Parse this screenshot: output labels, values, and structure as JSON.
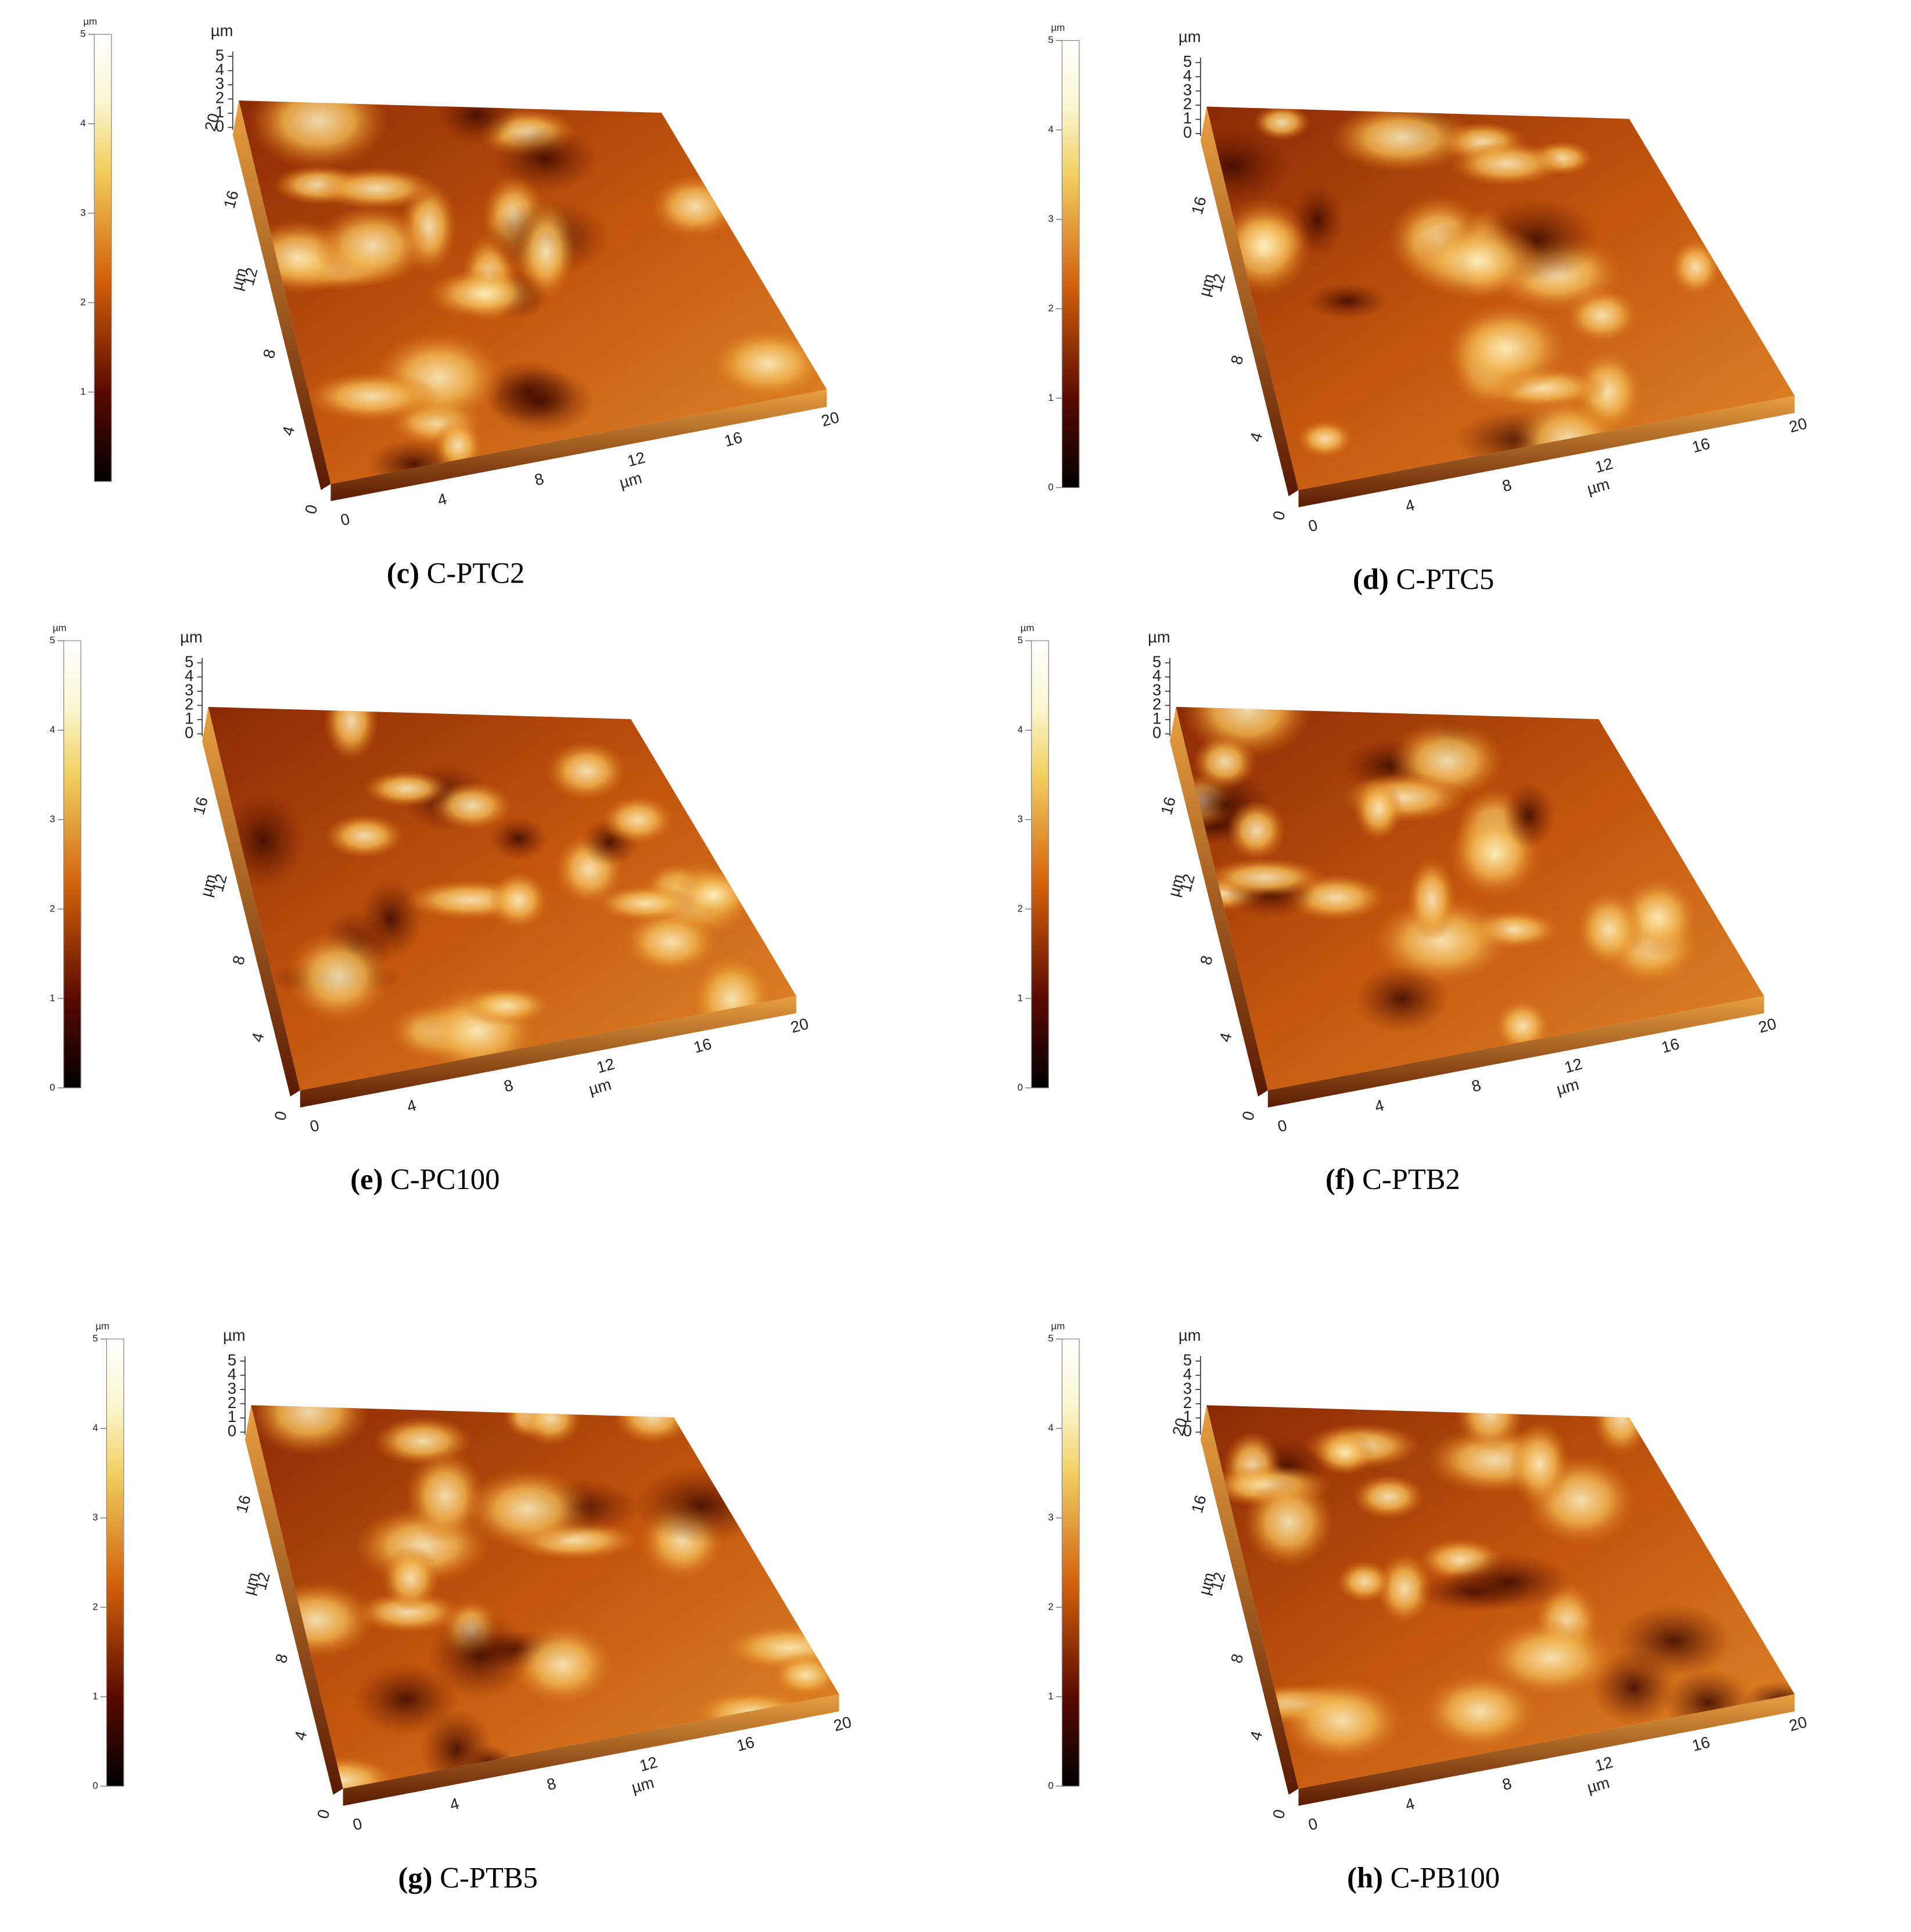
{
  "panels": [
    {
      "label": "(c)",
      "name": "C-PTC2",
      "colorbar": {
        "unit": "µm",
        "ticks": [
          1,
          2,
          3,
          4,
          5
        ]
      },
      "z": {
        "unit": "µm",
        "ticks": [
          0,
          1,
          2,
          3,
          4,
          5
        ]
      },
      "y": {
        "unit": "µm",
        "ticks": [
          4,
          8,
          12,
          16,
          20
        ]
      },
      "x": {
        "unit": "µm",
        "ticks": [
          0,
          4,
          8,
          12,
          16,
          20
        ]
      },
      "origin": 0
    },
    {
      "label": "(d)",
      "name": "C-PTC5",
      "colorbar": {
        "unit": "µm",
        "ticks": [
          0,
          1,
          2,
          3,
          4,
          5
        ]
      },
      "z": {
        "unit": "µm",
        "ticks": [
          0,
          1,
          2,
          3,
          4,
          5
        ]
      },
      "y": {
        "unit": "µm",
        "ticks": [
          4,
          8,
          12,
          16
        ]
      },
      "x": {
        "unit": "µm",
        "ticks": [
          0,
          4,
          8,
          12,
          16,
          20
        ]
      },
      "origin": 0
    },
    {
      "label": "(e)",
      "name": "C-PC100",
      "colorbar": {
        "unit": "µm",
        "ticks": [
          0,
          1,
          2,
          3,
          4,
          5
        ]
      },
      "z": {
        "unit": "µm",
        "ticks": [
          0,
          1,
          2,
          3,
          4,
          5
        ]
      },
      "y": {
        "unit": "µm",
        "ticks": [
          4,
          8,
          12,
          16
        ]
      },
      "x": {
        "unit": "µm",
        "ticks": [
          0,
          4,
          8,
          12,
          16,
          20
        ]
      },
      "origin": 0
    },
    {
      "label": "(f)",
      "name": "C-PTB2",
      "colorbar": {
        "unit": "µm",
        "ticks": [
          0,
          1,
          2,
          3,
          4,
          5
        ]
      },
      "z": {
        "unit": "µm",
        "ticks": [
          0,
          1,
          2,
          3,
          4,
          5
        ]
      },
      "y": {
        "unit": "µm",
        "ticks": [
          4,
          8,
          12,
          16
        ]
      },
      "x": {
        "unit": "µm",
        "ticks": [
          0,
          4,
          8,
          12,
          16,
          20
        ]
      },
      "origin": 0
    },
    {
      "label": "(g)",
      "name": "C-PTB5",
      "colorbar": {
        "unit": "µm",
        "ticks": [
          0,
          1,
          2,
          3,
          4,
          5
        ]
      },
      "z": {
        "unit": "µm",
        "ticks": [
          0,
          1,
          2,
          3,
          4,
          5
        ]
      },
      "y": {
        "unit": "µm",
        "ticks": [
          4,
          8,
          12,
          16
        ]
      },
      "x": {
        "unit": "µm",
        "ticks": [
          0,
          4,
          8,
          12,
          16,
          20
        ]
      },
      "origin": 0
    },
    {
      "label": "(h)",
      "name": "C-PB100",
      "colorbar": {
        "unit": "µm",
        "ticks": [
          0,
          1,
          2,
          3,
          4,
          5
        ]
      },
      "z": {
        "unit": "µm",
        "ticks": [
          0,
          1,
          2,
          3,
          4,
          5
        ]
      },
      "y": {
        "unit": "µm",
        "ticks": [
          4,
          8,
          12,
          16,
          20
        ]
      },
      "x": {
        "unit": "µm",
        "ticks": [
          0,
          4,
          8,
          12,
          16,
          20
        ]
      },
      "origin": 0
    }
  ]
}
